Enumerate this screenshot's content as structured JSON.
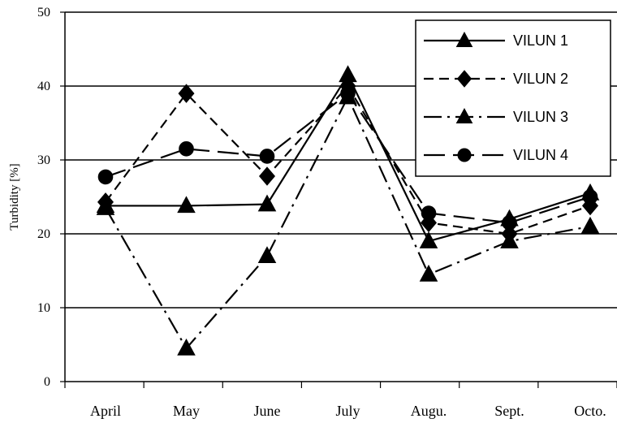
{
  "chart_data": {
    "type": "line",
    "title": "",
    "xlabel": "",
    "ylabel": "Turbidity [%]",
    "ylim": [
      0,
      50
    ],
    "yticks": [
      0,
      10,
      20,
      30,
      40,
      50
    ],
    "grid": "horizontal",
    "legend_position": "top-right",
    "categories": [
      "April",
      "May",
      "June",
      "July",
      "Augu.",
      "Sept.",
      "Octo."
    ],
    "series": [
      {
        "name": "VILUN 1",
        "marker": "triangle",
        "dash": "solid",
        "color": "#000000",
        "values": [
          23.8,
          23.8,
          24.0,
          41.5,
          19.0,
          22.0,
          25.5
        ]
      },
      {
        "name": "VILUN 2",
        "marker": "diamond",
        "dash": "dashed",
        "color": "#000000",
        "values": [
          24.3,
          39.0,
          27.8,
          40.0,
          21.5,
          20.0,
          23.8
        ]
      },
      {
        "name": "VILUN 3",
        "marker": "triangle",
        "dash": "dashdot",
        "color": "#000000",
        "values": [
          23.5,
          4.5,
          17.0,
          38.5,
          14.5,
          19.0,
          21.0
        ]
      },
      {
        "name": "VILUN 4",
        "marker": "circle",
        "dash": "longdash",
        "color": "#000000",
        "values": [
          27.7,
          31.5,
          30.5,
          39.0,
          22.8,
          21.5,
          25.0
        ]
      }
    ]
  }
}
